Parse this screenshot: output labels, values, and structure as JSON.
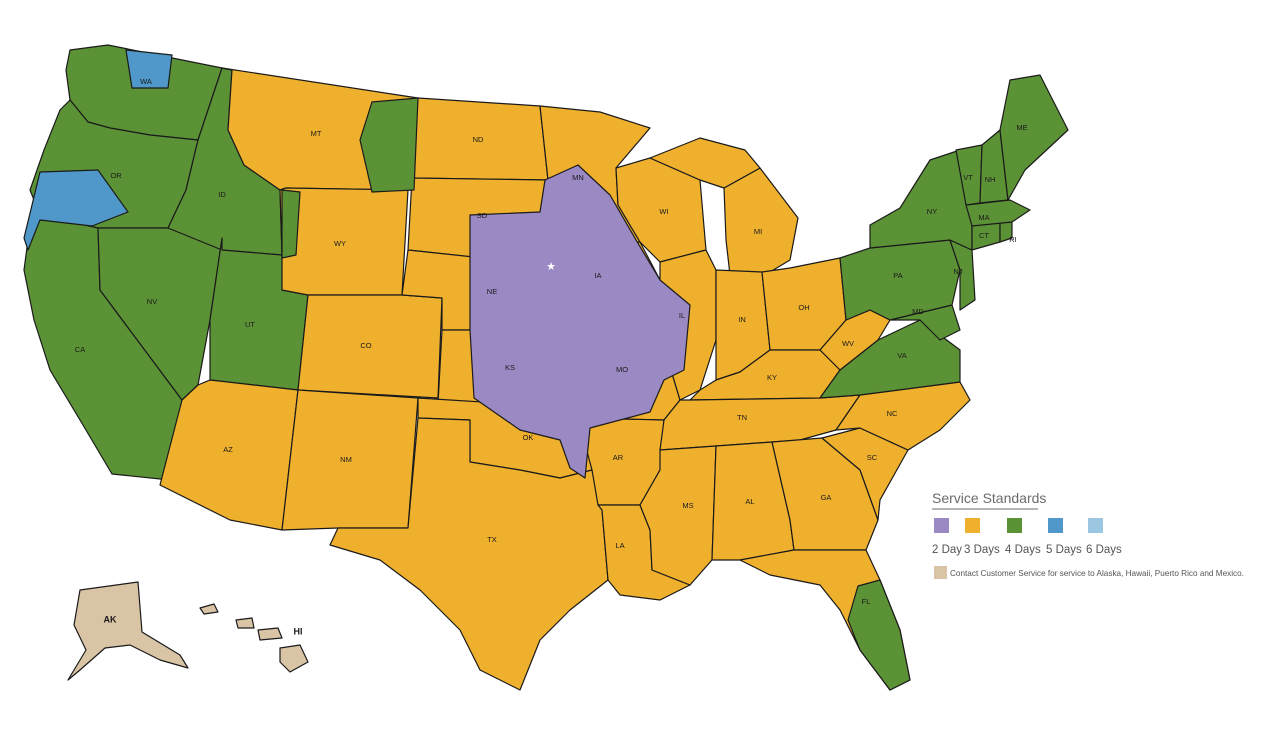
{
  "colors": {
    "day2": "#9b89c4",
    "day3": "#efb02e",
    "day4": "#5c9236",
    "day5": "#4f98c9",
    "day6": "#9cc7e3",
    "contact": "#d9c4a6"
  },
  "states": {
    "WA": "WA",
    "OR": "OR",
    "CA": "CA",
    "NV": "NV",
    "ID": "ID",
    "UT": "UT",
    "AZ": "AZ",
    "MT": "MT",
    "WY": "WY",
    "CO": "CO",
    "NM": "NM",
    "ND": "ND",
    "SD": "SD",
    "NE": "NE",
    "KS": "KS",
    "OK": "OK",
    "TX": "TX",
    "MN": "MN",
    "IA": "IA",
    "MO": "MO",
    "AR": "AR",
    "LA": "LA",
    "WI": "WI",
    "IL": "IL",
    "MI": "MI",
    "IN": "IN",
    "OH": "OH",
    "KY": "KY",
    "TN": "TN",
    "MS": "MS",
    "AL": "AL",
    "GA": "GA",
    "FL": "FL",
    "SC": "SC",
    "NC": "NC",
    "VA": "VA",
    "WV": "WV",
    "MD": "MD",
    "PA": "PA",
    "NJ": "NJ",
    "NY": "NY",
    "CT": "CT",
    "RI": "RI",
    "MA": "MA",
    "VT": "VT",
    "NH": "NH",
    "ME": "ME",
    "AK": "AK",
    "HI": "HI"
  },
  "legend": {
    "title": "Service Standards",
    "items": [
      {
        "label": "2 Day",
        "color": "#9b89c4"
      },
      {
        "label": "3 Days",
        "color": "#efb02e"
      },
      {
        "label": "4 Days",
        "color": "#5c9236"
      },
      {
        "label": "5 Days",
        "color": "#4f98c9"
      },
      {
        "label": "6 Days",
        "color": "#9cc7e3"
      }
    ],
    "note": "Contact Customer Service for service to Alaska, Hawaii, Puerto Rico and Mexico."
  }
}
